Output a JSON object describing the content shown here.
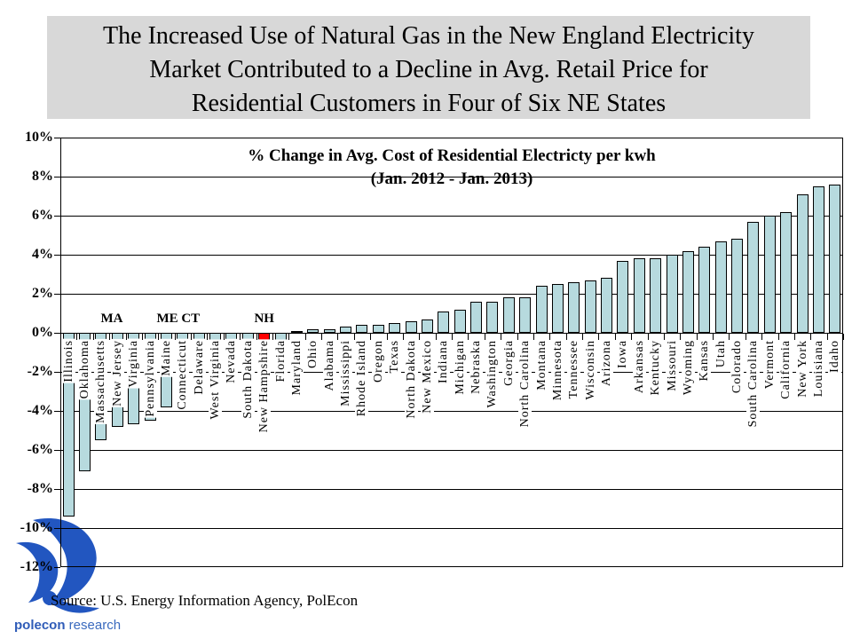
{
  "slide": {
    "title_lines": [
      "The Increased Use of Natural Gas in the New England Electricity",
      "Market Contributed to a Decline in Avg. Retail Price for",
      "Residential Customers in Four of Six NE States"
    ],
    "source_text": "Source: U.S. Energy Information Agency, PolEcon",
    "logo": {
      "bold_text": "polecon",
      "regular_text": " research",
      "color": "#2f5cb8"
    }
  },
  "chart_data": {
    "type": "bar",
    "title_line1": "% Change in Avg. Cost of Residential Electricty per kwh",
    "title_line2": "(Jan. 2012 - Jan. 2013)",
    "ylim": [
      -12,
      10
    ],
    "y_tick_step": 2,
    "y_tick_labels": [
      "10%",
      "8%",
      "6%",
      "4%",
      "2%",
      "0%",
      "-2%",
      "-4%",
      "-6%",
      "-8%",
      "-10%",
      "-12%"
    ],
    "grid": "horizontal",
    "legend": "none",
    "bar_color": "#b7dade",
    "highlight_color": "#ff0000",
    "highlight_index": 12,
    "categories": [
      "Illinois",
      "Oklahoma",
      "Massachusetts",
      "New Jersey",
      "Virginia",
      "Pennsylvania",
      "Maine",
      "Connecticut",
      "Delaware",
      "West Virginia",
      "Nevada",
      "South Dakota",
      "New Hampshire",
      "Florida",
      "Maryland",
      "Ohio",
      "Alabama",
      "Mississippi",
      "Rhode Island",
      "Oregon",
      "Texas",
      "North Dakota",
      "New Mexico",
      "Indiana",
      "Michigan",
      "Nebraska",
      "Washington",
      "Georgia",
      "North Carolina",
      "Montana",
      "Minnesota",
      "Tennessee",
      "Wisconsin",
      "Arizona",
      "Iowa",
      "Arkansas",
      "Kentucky",
      "Missouri",
      "Wyoming",
      "Kansas",
      "Utah",
      "Colorado",
      "South Carolina",
      "Vermont",
      "California",
      "New York",
      "Louisiana",
      "Idaho"
    ],
    "values": [
      -9.4,
      -7.1,
      -5.5,
      -4.8,
      -4.7,
      -4.5,
      -3.8,
      -3.4,
      -1.2,
      -1.3,
      -1.0,
      -0.7,
      -0.8,
      -0.7,
      0.1,
      0.2,
      0.2,
      0.3,
      0.4,
      0.4,
      0.5,
      0.6,
      0.7,
      1.1,
      1.2,
      1.6,
      1.6,
      1.8,
      1.8,
      2.4,
      2.5,
      2.6,
      2.7,
      2.8,
      3.7,
      3.8,
      3.8,
      4.0,
      4.2,
      4.4,
      4.7,
      4.8,
      5.7,
      6.0,
      6.2,
      7.1,
      7.5,
      7.6
    ],
    "annotations": [
      {
        "label": "MA",
        "index": 2,
        "dx": 12
      },
      {
        "label": "ME CT",
        "index": 7,
        "dx": -5
      },
      {
        "label": "NH",
        "index": 12,
        "dx": 0
      }
    ]
  }
}
